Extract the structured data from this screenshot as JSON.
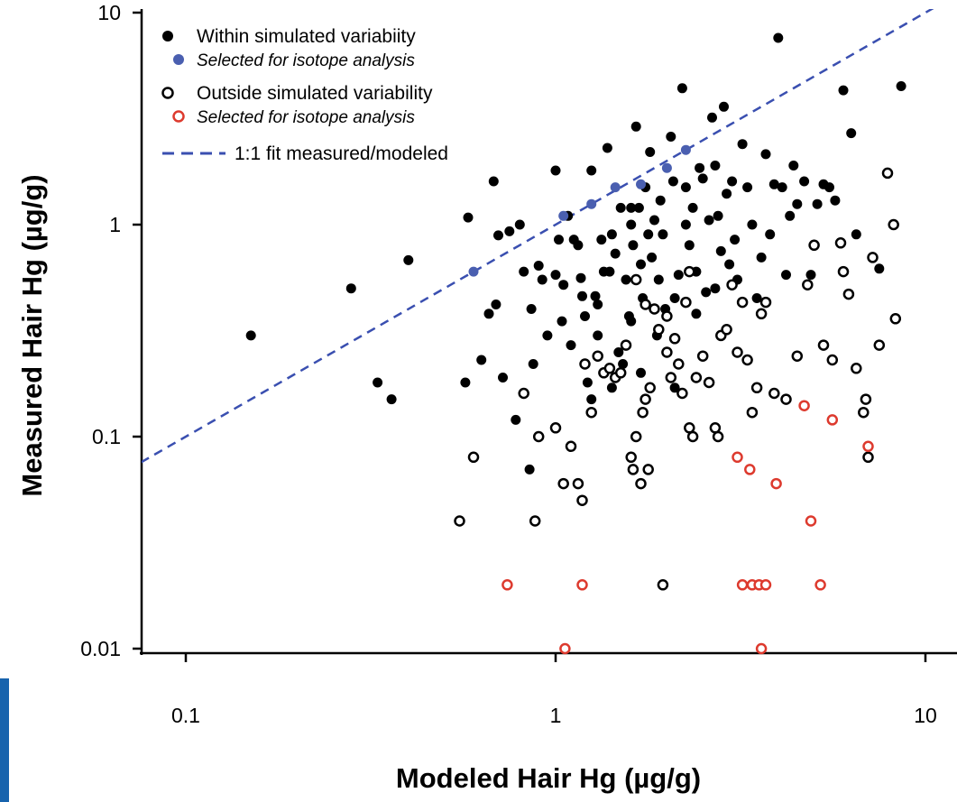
{
  "colors": {
    "within": "#000000",
    "selected_within": "#4a5fb0",
    "outside": "#000000",
    "selected_outside": "#dd3a2e",
    "fit_line": "#3a4fb0",
    "strip": "#1763ad"
  },
  "chart_data": {
    "type": "scatter",
    "xlabel": "Modeled Hair Hg (µg/g)",
    "ylabel": "Measured Hair Hg (µg/g)",
    "x_scale": "log",
    "y_scale": "log",
    "xlim": [
      0.08,
      11
    ],
    "ylim": [
      0.0075,
      11.5
    ],
    "x_ticks": [
      {
        "value": 0.1,
        "label": "0.1"
      },
      {
        "value": 1,
        "label": "1"
      },
      {
        "value": 10,
        "label": "10"
      }
    ],
    "y_ticks": [
      {
        "value": 0.01,
        "label": "0.01"
      },
      {
        "value": 0.1,
        "label": "0.1"
      },
      {
        "value": 1,
        "label": "1"
      },
      {
        "value": 10,
        "label": "10"
      }
    ],
    "grid": false,
    "legend_position": "top-left",
    "legend": [
      {
        "label": "Within simulated variabiity",
        "marker": "filled",
        "color": "#000000",
        "italic": false
      },
      {
        "label": "Selected for isotope analysis",
        "marker": "filled",
        "color": "#4a5fb0",
        "italic": true
      },
      {
        "label": "Outside simulated variability",
        "marker": "open",
        "color": "#000000",
        "italic": false
      },
      {
        "label": "Selected for isotope analysis",
        "marker": "open",
        "color": "#dd3a2e",
        "italic": true
      },
      {
        "label": "1:1 fit measured/modeled",
        "marker": "dashed-line",
        "color": "#3a4fb0",
        "italic": false
      }
    ],
    "fit_line": {
      "name": "1:1 fit measured/modeled",
      "slope": 1,
      "intercept": 0
    },
    "series": [
      {
        "name": "Within simulated variabiity",
        "marker": "filled",
        "color": "#000000",
        "points": [
          [
            0.15,
            0.3
          ],
          [
            0.28,
            0.5
          ],
          [
            0.33,
            0.18
          ],
          [
            0.36,
            0.15
          ],
          [
            0.4,
            0.68
          ],
          [
            0.58,
            1.08
          ],
          [
            0.57,
            0.18
          ],
          [
            0.63,
            0.23
          ],
          [
            0.66,
            0.38
          ],
          [
            0.69,
            0.42
          ],
          [
            0.68,
            1.6
          ],
          [
            0.7,
            0.89
          ],
          [
            0.75,
            0.93
          ],
          [
            0.8,
            1.0
          ],
          [
            0.82,
            0.6
          ],
          [
            0.86,
            0.4
          ],
          [
            0.87,
            0.22
          ],
          [
            0.9,
            0.64
          ],
          [
            0.92,
            0.55
          ],
          [
            0.95,
            0.3
          ],
          [
            0.72,
            0.19
          ],
          [
            0.78,
            0.12
          ],
          [
            0.85,
            0.07
          ],
          [
            1.0,
            1.8
          ],
          [
            1.02,
            0.85
          ],
          [
            1.04,
            0.35
          ],
          [
            1.08,
            1.1
          ],
          [
            1.1,
            0.27
          ],
          [
            1.12,
            0.85
          ],
          [
            1.15,
            0.8
          ],
          [
            1.17,
            0.56
          ],
          [
            1.18,
            0.46
          ],
          [
            1.2,
            0.37
          ],
          [
            1.22,
            0.18
          ],
          [
            1.25,
            1.8
          ],
          [
            1.28,
            0.46
          ],
          [
            1.3,
            0.42
          ],
          [
            1.33,
            0.85
          ],
          [
            1.35,
            0.6
          ],
          [
            1.38,
            2.3
          ],
          [
            1.4,
            0.6
          ],
          [
            1.42,
            0.9
          ],
          [
            1.45,
            0.73
          ],
          [
            1.48,
            0.25
          ],
          [
            1.5,
            1.2
          ],
          [
            1.52,
            0.22
          ],
          [
            1.55,
            0.55
          ],
          [
            1.58,
            0.37
          ],
          [
            1.6,
            1.0
          ],
          [
            1.62,
            0.8
          ],
          [
            1.65,
            2.9
          ],
          [
            1.68,
            1.2
          ],
          [
            1.7,
            0.65
          ],
          [
            1.72,
            0.45
          ],
          [
            1.75,
            1.5
          ],
          [
            1.78,
            0.9
          ],
          [
            1.8,
            2.2
          ],
          [
            1.82,
            0.7
          ],
          [
            1.85,
            1.05
          ],
          [
            1.88,
            0.3
          ],
          [
            1.9,
            0.55
          ],
          [
            1.92,
            1.3
          ],
          [
            1.95,
            0.9
          ],
          [
            1.98,
            0.4
          ],
          [
            2.0,
            0.25
          ],
          [
            2.05,
            2.6
          ],
          [
            2.08,
            1.6
          ],
          [
            2.1,
            0.17
          ],
          [
            2.15,
            0.58
          ],
          [
            2.2,
            4.4
          ],
          [
            2.25,
            1.5
          ],
          [
            2.3,
            0.8
          ],
          [
            2.35,
            1.2
          ],
          [
            2.4,
            0.6
          ],
          [
            2.45,
            1.85
          ],
          [
            2.5,
            1.65
          ],
          [
            2.55,
            0.48
          ],
          [
            2.6,
            1.05
          ],
          [
            2.65,
            3.2
          ],
          [
            2.7,
            1.9
          ],
          [
            2.75,
            1.1
          ],
          [
            2.8,
            0.75
          ],
          [
            2.85,
            3.6
          ],
          [
            2.9,
            1.4
          ],
          [
            2.95,
            0.65
          ],
          [
            3.0,
            1.6
          ],
          [
            3.05,
            0.85
          ],
          [
            3.1,
            0.55
          ],
          [
            3.2,
            2.4
          ],
          [
            3.3,
            1.5
          ],
          [
            3.4,
            1.0
          ],
          [
            3.5,
            0.45
          ],
          [
            3.6,
            0.7
          ],
          [
            3.7,
            2.15
          ],
          [
            3.8,
            0.9
          ],
          [
            3.9,
            1.55
          ],
          [
            4.0,
            7.6
          ],
          [
            4.1,
            1.5
          ],
          [
            4.2,
            0.58
          ],
          [
            4.3,
            1.1
          ],
          [
            4.4,
            1.9
          ],
          [
            4.5,
            1.25
          ],
          [
            4.7,
            1.6
          ],
          [
            4.9,
            0.58
          ],
          [
            5.1,
            1.25
          ],
          [
            5.3,
            1.55
          ],
          [
            5.5,
            1.5
          ],
          [
            5.7,
            1.3
          ],
          [
            6.0,
            4.3
          ],
          [
            6.3,
            2.7
          ],
          [
            6.5,
            0.9
          ],
          [
            7.5,
            0.62
          ],
          [
            8.6,
            4.5
          ],
          [
            1.0,
            0.58
          ],
          [
            1.05,
            0.52
          ],
          [
            1.3,
            0.3
          ],
          [
            1.6,
            0.35
          ],
          [
            1.7,
            0.2
          ],
          [
            2.1,
            0.45
          ],
          [
            2.4,
            0.38
          ],
          [
            2.7,
            0.5
          ],
          [
            1.25,
            0.15
          ],
          [
            1.42,
            0.17
          ],
          [
            1.6,
            1.2
          ],
          [
            2.25,
            1.0
          ]
        ]
      },
      {
        "name": "Selected for isotope analysis",
        "marker": "filled",
        "color": "#4a5fb0",
        "points": [
          [
            0.6,
            0.6
          ],
          [
            1.05,
            1.1
          ],
          [
            1.25,
            1.25
          ],
          [
            1.45,
            1.5
          ],
          [
            1.7,
            1.55
          ],
          [
            2.0,
            1.85
          ],
          [
            2.25,
            2.25
          ]
        ]
      },
      {
        "name": "Outside simulated variability",
        "marker": "open",
        "color": "#000000",
        "points": [
          [
            0.55,
            0.04
          ],
          [
            0.6,
            0.08
          ],
          [
            0.82,
            0.16
          ],
          [
            0.88,
            0.04
          ],
          [
            0.9,
            0.1
          ],
          [
            1.0,
            0.11
          ],
          [
            1.05,
            0.06
          ],
          [
            1.1,
            0.09
          ],
          [
            1.15,
            0.06
          ],
          [
            1.18,
            0.05
          ],
          [
            1.2,
            0.22
          ],
          [
            1.25,
            0.13
          ],
          [
            1.3,
            0.24
          ],
          [
            1.35,
            0.2
          ],
          [
            1.4,
            0.21
          ],
          [
            1.45,
            0.19
          ],
          [
            1.5,
            0.2
          ],
          [
            1.55,
            0.27
          ],
          [
            1.6,
            0.08
          ],
          [
            1.62,
            0.07
          ],
          [
            1.65,
            0.1
          ],
          [
            1.7,
            0.06
          ],
          [
            1.72,
            0.13
          ],
          [
            1.75,
            0.15
          ],
          [
            1.78,
            0.07
          ],
          [
            1.8,
            0.17
          ],
          [
            1.85,
            0.4
          ],
          [
            1.9,
            0.32
          ],
          [
            1.95,
            0.02
          ],
          [
            2.0,
            0.25
          ],
          [
            2.05,
            0.19
          ],
          [
            2.1,
            0.29
          ],
          [
            2.15,
            0.22
          ],
          [
            2.2,
            0.16
          ],
          [
            2.25,
            0.43
          ],
          [
            2.3,
            0.11
          ],
          [
            2.35,
            0.1
          ],
          [
            2.4,
            0.19
          ],
          [
            2.5,
            0.24
          ],
          [
            2.6,
            0.18
          ],
          [
            2.7,
            0.11
          ],
          [
            2.75,
            0.1
          ],
          [
            2.8,
            0.3
          ],
          [
            2.9,
            0.32
          ],
          [
            3.0,
            0.52
          ],
          [
            3.1,
            0.25
          ],
          [
            3.2,
            0.43
          ],
          [
            3.3,
            0.23
          ],
          [
            3.4,
            0.13
          ],
          [
            3.5,
            0.17
          ],
          [
            3.6,
            0.38
          ],
          [
            3.7,
            0.43
          ],
          [
            3.9,
            0.16
          ],
          [
            4.2,
            0.15
          ],
          [
            4.5,
            0.24
          ],
          [
            4.8,
            0.52
          ],
          [
            5.0,
            0.8
          ],
          [
            5.3,
            0.27
          ],
          [
            5.6,
            0.23
          ],
          [
            5.9,
            0.82
          ],
          [
            6.0,
            0.6
          ],
          [
            6.2,
            0.47
          ],
          [
            6.5,
            0.21
          ],
          [
            6.8,
            0.13
          ],
          [
            6.9,
            0.15
          ],
          [
            7.0,
            0.08
          ],
          [
            7.2,
            0.7
          ],
          [
            7.5,
            0.27
          ],
          [
            7.9,
            1.75
          ],
          [
            8.2,
            1.0
          ],
          [
            8.3,
            0.36
          ],
          [
            1.65,
            0.55
          ],
          [
            1.75,
            0.42
          ],
          [
            2.0,
            0.37
          ],
          [
            2.3,
            0.6
          ]
        ]
      },
      {
        "name": "Selected for isotope analysis",
        "marker": "open",
        "color": "#dd3a2e",
        "points": [
          [
            0.74,
            0.02
          ],
          [
            1.06,
            0.01
          ],
          [
            1.18,
            0.02
          ],
          [
            3.1,
            0.08
          ],
          [
            3.2,
            0.02
          ],
          [
            3.35,
            0.07
          ],
          [
            3.4,
            0.02
          ],
          [
            3.55,
            0.02
          ],
          [
            3.6,
            0.01
          ],
          [
            3.7,
            0.02
          ],
          [
            3.95,
            0.06
          ],
          [
            4.7,
            0.14
          ],
          [
            4.9,
            0.04
          ],
          [
            5.2,
            0.02
          ],
          [
            5.6,
            0.12
          ],
          [
            7.0,
            0.09
          ]
        ]
      }
    ]
  }
}
